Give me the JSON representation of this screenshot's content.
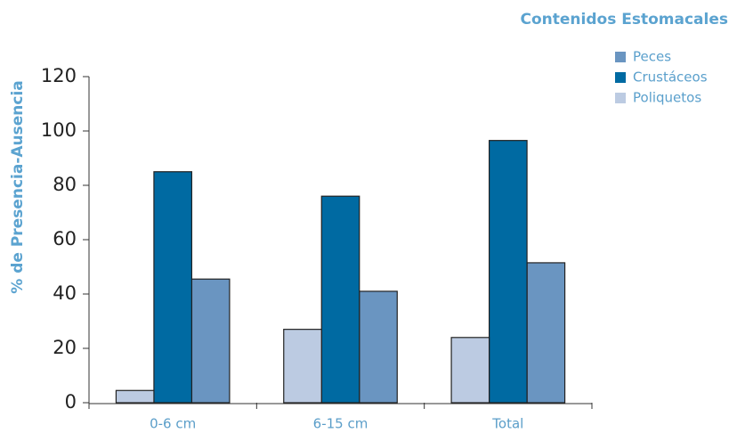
{
  "chart_data": {
    "type": "bar",
    "title": "Contenidos Estomacales",
    "y_label": "% de Presencia-Ausencia",
    "categories": [
      "0-6 cm",
      "6-15 cm",
      "Total"
    ],
    "series": [
      {
        "name": "Peces",
        "color": "#6a95c1",
        "values": [
          45.5,
          41,
          51.5
        ]
      },
      {
        "name": "Crustáceos",
        "color": "#006aa2",
        "values": [
          85,
          76,
          96.5
        ]
      },
      {
        "name": "Poliquetos",
        "color": "#bccbe2",
        "values": [
          4.5,
          27,
          24
        ]
      }
    ],
    "ylim": [
      0,
      120
    ],
    "yticks": [
      0,
      20,
      40,
      60,
      80,
      100,
      120
    ],
    "legend": "top-right"
  }
}
